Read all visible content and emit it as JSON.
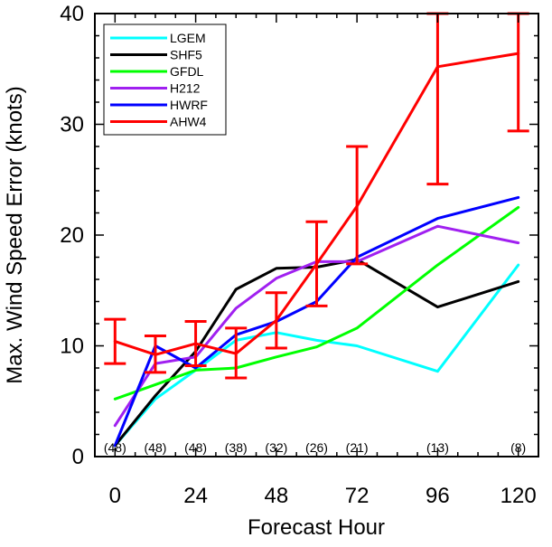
{
  "chart_data": {
    "type": "line",
    "xlabel": "Forecast Hour",
    "ylabel": "Max. Wind Speed Error (knots)",
    "xlim": [
      -6,
      126
    ],
    "ylim": [
      0,
      40
    ],
    "xticks": [
      0,
      24,
      48,
      72,
      96,
      120
    ],
    "yticks": [
      0,
      10,
      20,
      30,
      40
    ],
    "grid": false,
    "legend": "top-left",
    "sample_counts": [
      {
        "x": 0,
        "label": "(48)"
      },
      {
        "x": 12,
        "label": "(48)"
      },
      {
        "x": 24,
        "label": "(48)"
      },
      {
        "x": 36,
        "label": "(38)"
      },
      {
        "x": 48,
        "label": "(32)"
      },
      {
        "x": 60,
        "label": "(26)"
      },
      {
        "x": 72,
        "label": "(21)"
      },
      {
        "x": 96,
        "label": "(13)"
      },
      {
        "x": 120,
        "label": "(8)"
      }
    ],
    "series": [
      {
        "name": "LGEM",
        "color": "#00ffff",
        "x": [
          0,
          12,
          24,
          36,
          48,
          60,
          72,
          96,
          120
        ],
        "values": [
          1.0,
          5.2,
          7.8,
          10.5,
          11.2,
          10.5,
          10.0,
          7.7,
          17.3
        ]
      },
      {
        "name": "SHF5",
        "color": "#000000",
        "x": [
          0,
          12,
          24,
          36,
          48,
          60,
          72,
          96,
          120
        ],
        "values": [
          1.0,
          5.5,
          9.5,
          15.1,
          17.0,
          17.1,
          17.8,
          13.5,
          15.8
        ]
      },
      {
        "name": "GFDL",
        "color": "#00ff00",
        "x": [
          0,
          12,
          24,
          36,
          48,
          60,
          72,
          96,
          120
        ],
        "values": [
          5.2,
          6.5,
          7.8,
          8.0,
          9.0,
          9.9,
          11.6,
          17.3,
          22.5
        ]
      },
      {
        "name": "H212",
        "color": "#a020f0",
        "x": [
          0,
          12,
          24,
          36,
          48,
          60,
          72,
          96,
          120
        ],
        "values": [
          2.8,
          8.4,
          9.0,
          13.4,
          16.1,
          17.6,
          17.6,
          20.8,
          19.3
        ]
      },
      {
        "name": "HWRF",
        "color": "#0000ff",
        "x": [
          0,
          12,
          24,
          36,
          48,
          60,
          72,
          96,
          120
        ],
        "values": [
          1.0,
          10.0,
          8.0,
          11.0,
          12.2,
          14.0,
          18.0,
          21.5,
          23.4
        ]
      },
      {
        "name": "AHW4",
        "color": "#ff0000",
        "x": [
          0,
          12,
          24,
          36,
          48,
          60,
          72,
          96,
          120
        ],
        "values": [
          10.4,
          9.2,
          10.2,
          9.3,
          12.3,
          17.4,
          22.6,
          35.2,
          36.4
        ],
        "error_low": [
          8.4,
          7.6,
          8.2,
          7.1,
          9.8,
          13.6,
          17.4,
          24.6,
          29.4
        ],
        "error_high": [
          12.4,
          10.9,
          12.2,
          11.6,
          14.8,
          21.2,
          28.0,
          40.0,
          40.0
        ]
      }
    ]
  }
}
